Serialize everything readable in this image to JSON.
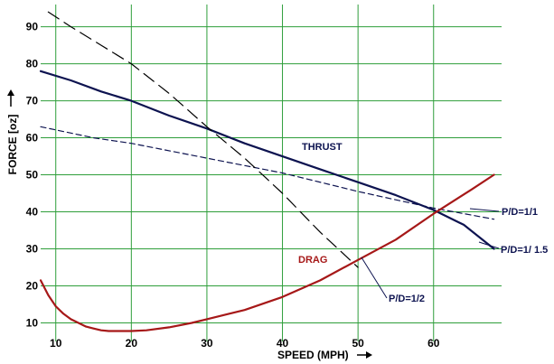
{
  "chart_data": {
    "type": "line",
    "xlabel": "SPEED (MPH)",
    "ylabel": "FORCE [oz]",
    "xlim": [
      8,
      69
    ],
    "ylim": [
      5,
      96
    ],
    "x_ticks": [
      10,
      20,
      30,
      40,
      50,
      60
    ],
    "y_ticks": [
      10,
      20,
      30,
      40,
      50,
      60,
      70,
      80,
      90
    ],
    "grid": true,
    "grid_color": "#2e9e3a",
    "series": [
      {
        "name": "P/D=1/1.5",
        "color": "#0d1350",
        "style": "solid",
        "x": [
          8,
          12,
          16,
          20,
          25,
          30,
          35,
          40,
          45,
          50,
          55,
          60,
          64,
          68
        ],
        "y": [
          78,
          75.5,
          72.5,
          70,
          66,
          62.5,
          58.5,
          55,
          51.5,
          48,
          44.5,
          40.5,
          36.5,
          30
        ]
      },
      {
        "name": "P/D=1/1",
        "color": "#0d1350",
        "style": "dashed",
        "x": [
          8,
          15,
          20,
          30,
          40,
          50,
          60,
          68
        ],
        "y": [
          63,
          60,
          58.5,
          54.5,
          50.5,
          45.5,
          41,
          38
        ]
      },
      {
        "name": "P/D=1/2",
        "color": "#000000",
        "style": "longdash",
        "x": [
          9,
          12,
          16,
          20,
          25,
          30,
          35,
          40,
          45,
          50
        ],
        "y": [
          94,
          90,
          85,
          80,
          72,
          63,
          54.5,
          45,
          34.5,
          25
        ]
      },
      {
        "name": "DRAG",
        "color": "#a61818",
        "style": "solid",
        "x": [
          8,
          9,
          10,
          11,
          12,
          13,
          14,
          15,
          16,
          17,
          18,
          20,
          22,
          25,
          28,
          30,
          35,
          40,
          45,
          50,
          55,
          60,
          65,
          68
        ],
        "y": [
          21.5,
          17.5,
          14.5,
          12.5,
          11,
          10,
          9,
          8.5,
          8,
          7.8,
          7.8,
          7.8,
          8,
          8.8,
          10,
          11,
          13.5,
          17,
          21.5,
          27,
          32.5,
          39.5,
          46,
          50
        ]
      }
    ],
    "annotations": {
      "thrust": "THRUST",
      "drag": "DRAG",
      "pd_1": "P/D=1/1",
      "pd_15": "P/D=1/ 1.5",
      "pd_2": "P/D=1/2"
    }
  }
}
